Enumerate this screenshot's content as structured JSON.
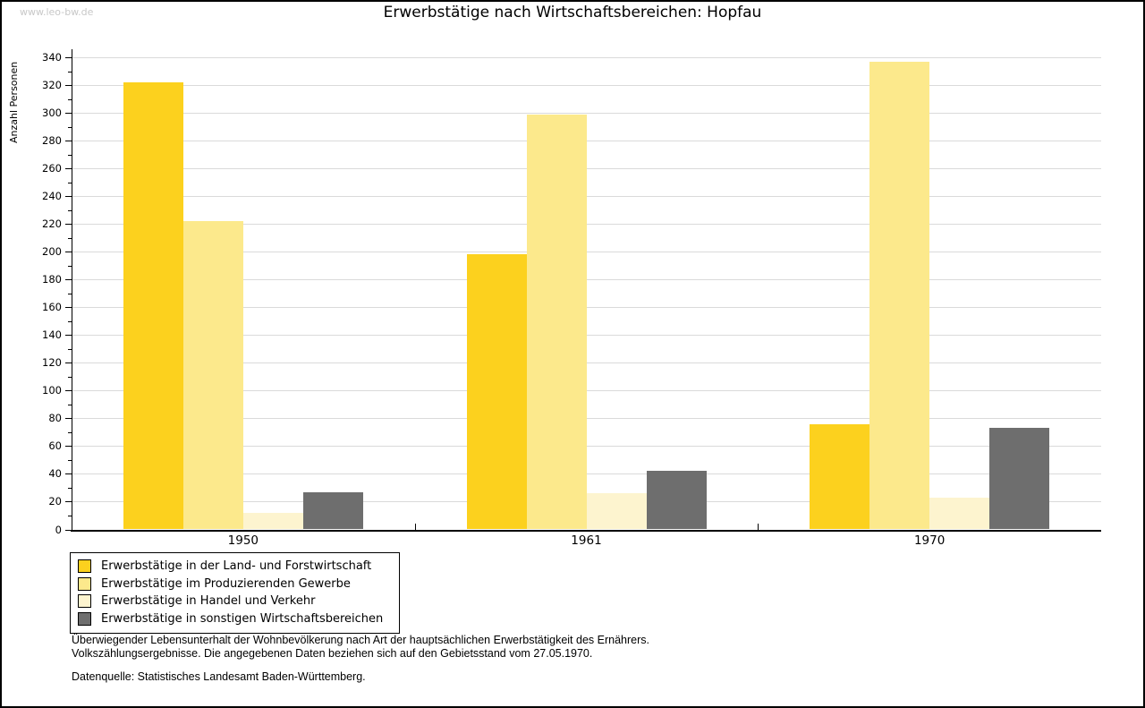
{
  "page": {
    "watermark": "www.leo-bw.de"
  },
  "chart_data": {
    "type": "bar",
    "title": "Erwerbstätige nach Wirtschaftsbereichen: Hopfau",
    "xlabel": "",
    "ylabel": "Anzahl Personen",
    "categories": [
      "1950",
      "1961",
      "1970"
    ],
    "series": [
      {
        "name": "Erwerbstätige in der Land- und Forstwirtschaft",
        "color": "#fcd11e",
        "values": [
          322,
          198,
          76
        ]
      },
      {
        "name": "Erwerbstätige im Produzierenden Gewerbe",
        "color": "#fce98c",
        "values": [
          222,
          299,
          337
        ]
      },
      {
        "name": "Erwerbstätige in Handel und Verkehr",
        "color": "#fdf4cf",
        "values": [
          12,
          26,
          23
        ]
      },
      {
        "name": "Erwerbstätige in sonstigen Wirtschaftsbereichen",
        "color": "#6e6e6e",
        "values": [
          27,
          42,
          73
        ]
      }
    ],
    "ylim": [
      0,
      340
    ],
    "ytick_step": 20,
    "yminor_step": 10,
    "grid": true,
    "gridline_color": "#dadada",
    "legend_position": "bottom-left"
  },
  "footer": {
    "line1": "Überwiegender Lebensunterhalt der Wohnbevölkerung nach Art der hauptsächlichen Erwerbstätigkeit des Ernährers.",
    "line2": "Volkszählungsergebnisse. Die angegebenen Daten beziehen sich auf den Gebietsstand vom 27.05.1970.",
    "source": "Datenquelle: Statistisches Landesamt Baden-Württemberg."
  }
}
